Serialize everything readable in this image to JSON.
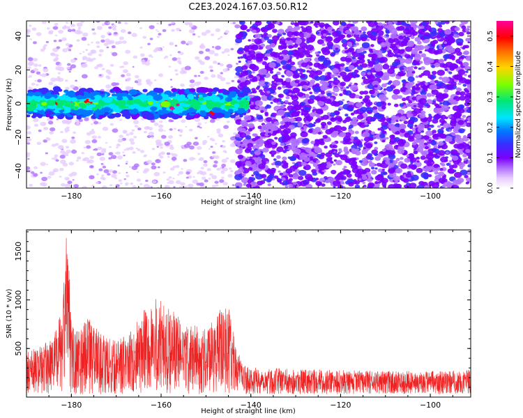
{
  "title": "C2E3.2024.167.03.50.R12",
  "colors": {
    "snr_line": "#ee2222",
    "colormap": [
      "#ffffff",
      "#e6ccff",
      "#b070ff",
      "#7a00ff",
      "#3a2cff",
      "#0078ff",
      "#00e5ff",
      "#00e676",
      "#7cff00",
      "#ffd500",
      "#ff6a00",
      "#ff0000",
      "#ff0099"
    ]
  },
  "chart_data": [
    {
      "type": "heatmap",
      "title": "C2E3.2024.167.03.50.R12",
      "xlabel": "Height of straight line (km)",
      "ylabel": "Frequency (Hz)",
      "xlim": [
        -190,
        -91
      ],
      "ylim": [
        -50,
        49
      ],
      "xticks": [
        -180,
        -160,
        -140,
        -120,
        -100
      ],
      "yticks": [
        -40,
        -20,
        0,
        20,
        40
      ],
      "grid": false,
      "description_values": {
        "signal_band_frequency_hz": 0,
        "signal_band_extent_km": [
          -190,
          -141
        ],
        "noise_region_starts_km": -143
      },
      "colorbar": {
        "label": "Normalized spectral amplitude",
        "range": [
          0.0,
          0.55
        ],
        "ticks": [
          0.0,
          0.1,
          0.2,
          0.3,
          0.4,
          0.5
        ]
      }
    },
    {
      "type": "line",
      "xlabel": "Height of straight line (km)",
      "ylabel": "SNR (10 * v/v)",
      "xlim": [
        -190,
        -91
      ],
      "ylim": [
        0,
        1720
      ],
      "xticks": [
        -180,
        -160,
        -140,
        -120,
        -100
      ],
      "yticks": [
        500,
        1000,
        1500
      ],
      "grid": false,
      "series_envelope": {
        "x": [
          -190,
          -188,
          -186,
          -184,
          -182,
          -181,
          -180.5,
          -180,
          -179,
          -178,
          -177,
          -176,
          -174,
          -172,
          -170,
          -168,
          -166,
          -164,
          -162,
          -160,
          -158,
          -156,
          -154,
          -152,
          -150,
          -148,
          -146,
          -145,
          -144,
          -143,
          -142,
          -140,
          -130,
          -120,
          -110,
          -100,
          -91
        ],
        "y": [
          450,
          480,
          520,
          600,
          900,
          1720,
          1300,
          800,
          650,
          700,
          850,
          780,
          650,
          580,
          550,
          620,
          700,
          850,
          1000,
          980,
          900,
          800,
          700,
          720,
          680,
          800,
          950,
          900,
          700,
          450,
          350,
          280,
          260,
          250,
          240,
          240,
          250
        ]
      }
    }
  ]
}
